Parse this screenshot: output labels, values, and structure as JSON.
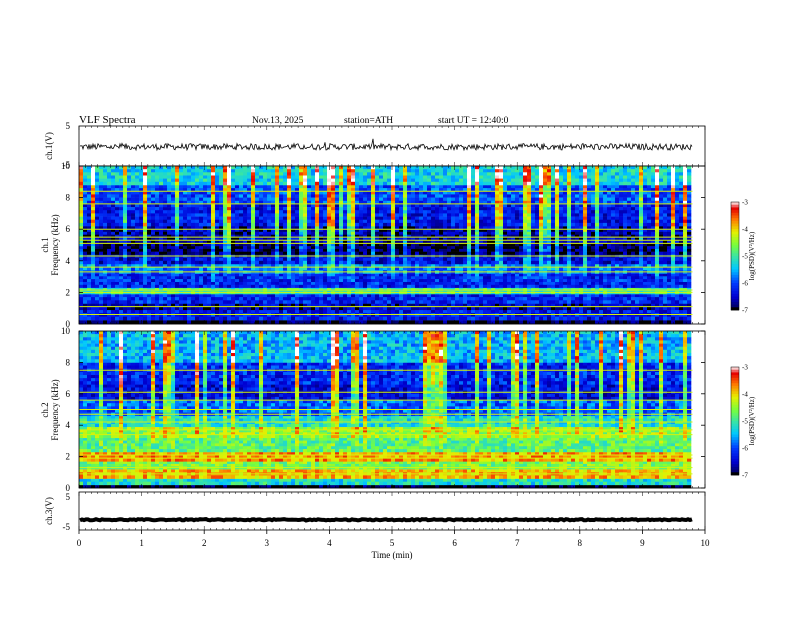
{
  "header": {
    "title": "VLF  Spectra",
    "date": "Nov.13, 2025",
    "station": "station=ATH",
    "start_ut": "start  UT  =    12:40:0"
  },
  "chart_data": {
    "type": "heatmap",
    "x_axis": {
      "label": "Time  (min)",
      "range": [
        0,
        10
      ],
      "ticks": [
        "0",
        "1",
        "2",
        "3",
        "4",
        "5",
        "6",
        "7",
        "8",
        "9",
        "10"
      ],
      "data_end": 9.8
    },
    "panels": [
      {
        "id": "ch1-waveform",
        "type": "line",
        "ylabel": "ch.1(V)",
        "yrange": [
          -5,
          5
        ],
        "yticks": [
          "5",
          "-5"
        ],
        "baseline": -0.2,
        "amplitude": 0.8
      },
      {
        "id": "ch1-spectrogram",
        "type": "heatmap",
        "ylabel": "Frequency (kHz)",
        "channel_label": "ch.1",
        "yrange": [
          0,
          10
        ],
        "yticks": [
          "0",
          "2",
          "4",
          "6",
          "8",
          "10"
        ],
        "colorbar": {
          "label": "log(PSD)(V²/Hz)",
          "range": [
            -7,
            -3
          ],
          "ticks": [
            "-3",
            "-4",
            "-5",
            "-6",
            "-7"
          ]
        },
        "bands": [
          {
            "from": 0,
            "to": 0.25,
            "level": -7
          },
          {
            "from": 0.25,
            "to": 0.9,
            "level": -6.3
          },
          {
            "from": 0.9,
            "to": 1.3,
            "level": -6.6
          },
          {
            "from": 1.3,
            "to": 1.9,
            "level": -6.2
          },
          {
            "from": 1.9,
            "to": 2.3,
            "level": -5.0
          },
          {
            "from": 2.3,
            "to": 3.2,
            "level": -6.2
          },
          {
            "from": 3.2,
            "to": 3.8,
            "level": -5.8
          },
          {
            "from": 3.8,
            "to": 4.4,
            "level": -6.4
          },
          {
            "from": 4.4,
            "to": 5.1,
            "level": -6.9
          },
          {
            "from": 5.1,
            "to": 6.2,
            "level": -6.6
          },
          {
            "from": 6.2,
            "to": 7.6,
            "level": -6.3
          },
          {
            "from": 7.6,
            "to": 8.8,
            "level": -6.0
          },
          {
            "from": 8.8,
            "to": 10,
            "level": -5.3
          }
        ],
        "lines_khz": [
          0.6,
          1.1,
          2.0,
          2.15,
          3.3,
          3.6,
          4.3,
          5.1,
          5.3,
          5.5,
          6.0,
          7.6,
          8.4
        ]
      },
      {
        "id": "ch2-spectrogram",
        "type": "heatmap",
        "ylabel": "Frequency (kHz)",
        "channel_label": "ch.2",
        "yrange": [
          0,
          10
        ],
        "yticks": [
          "0",
          "2",
          "4",
          "6",
          "8",
          "10"
        ],
        "colorbar": {
          "label": "log(PSD)(V²/Hz)",
          "range": [
            -7,
            -3
          ],
          "ticks": [
            "-3",
            "-4",
            "-5",
            "-6",
            "-7"
          ]
        },
        "bands": [
          {
            "from": 0,
            "to": 0.2,
            "level": -7
          },
          {
            "from": 0.2,
            "to": 0.6,
            "level": -5.2
          },
          {
            "from": 0.6,
            "to": 1.2,
            "level": -3.9
          },
          {
            "from": 1.2,
            "to": 1.7,
            "level": -4.6
          },
          {
            "from": 1.7,
            "to": 2.3,
            "level": -3.8
          },
          {
            "from": 2.3,
            "to": 3.2,
            "level": -4.8
          },
          {
            "from": 3.2,
            "to": 3.9,
            "level": -4.5
          },
          {
            "from": 3.9,
            "to": 4.6,
            "level": -5.2
          },
          {
            "from": 4.6,
            "to": 5.6,
            "level": -5.9
          },
          {
            "from": 5.6,
            "to": 6.6,
            "level": -6.4
          },
          {
            "from": 6.6,
            "to": 8.0,
            "level": -6.2
          },
          {
            "from": 8.0,
            "to": 10,
            "level": -5.5
          }
        ],
        "lines_khz": [
          0.9,
          1.3,
          1.9,
          2.1,
          3.4,
          3.7,
          4.2,
          4.7,
          5.0,
          5.6,
          6.1,
          7.5
        ]
      },
      {
        "id": "ch3-waveform",
        "type": "line",
        "ylabel": "ch.3(V)",
        "yrange": [
          -5,
          5
        ],
        "yticks": [
          "5",
          "-5"
        ],
        "baseline": -2.3,
        "amplitude": 0.15
      }
    ]
  }
}
